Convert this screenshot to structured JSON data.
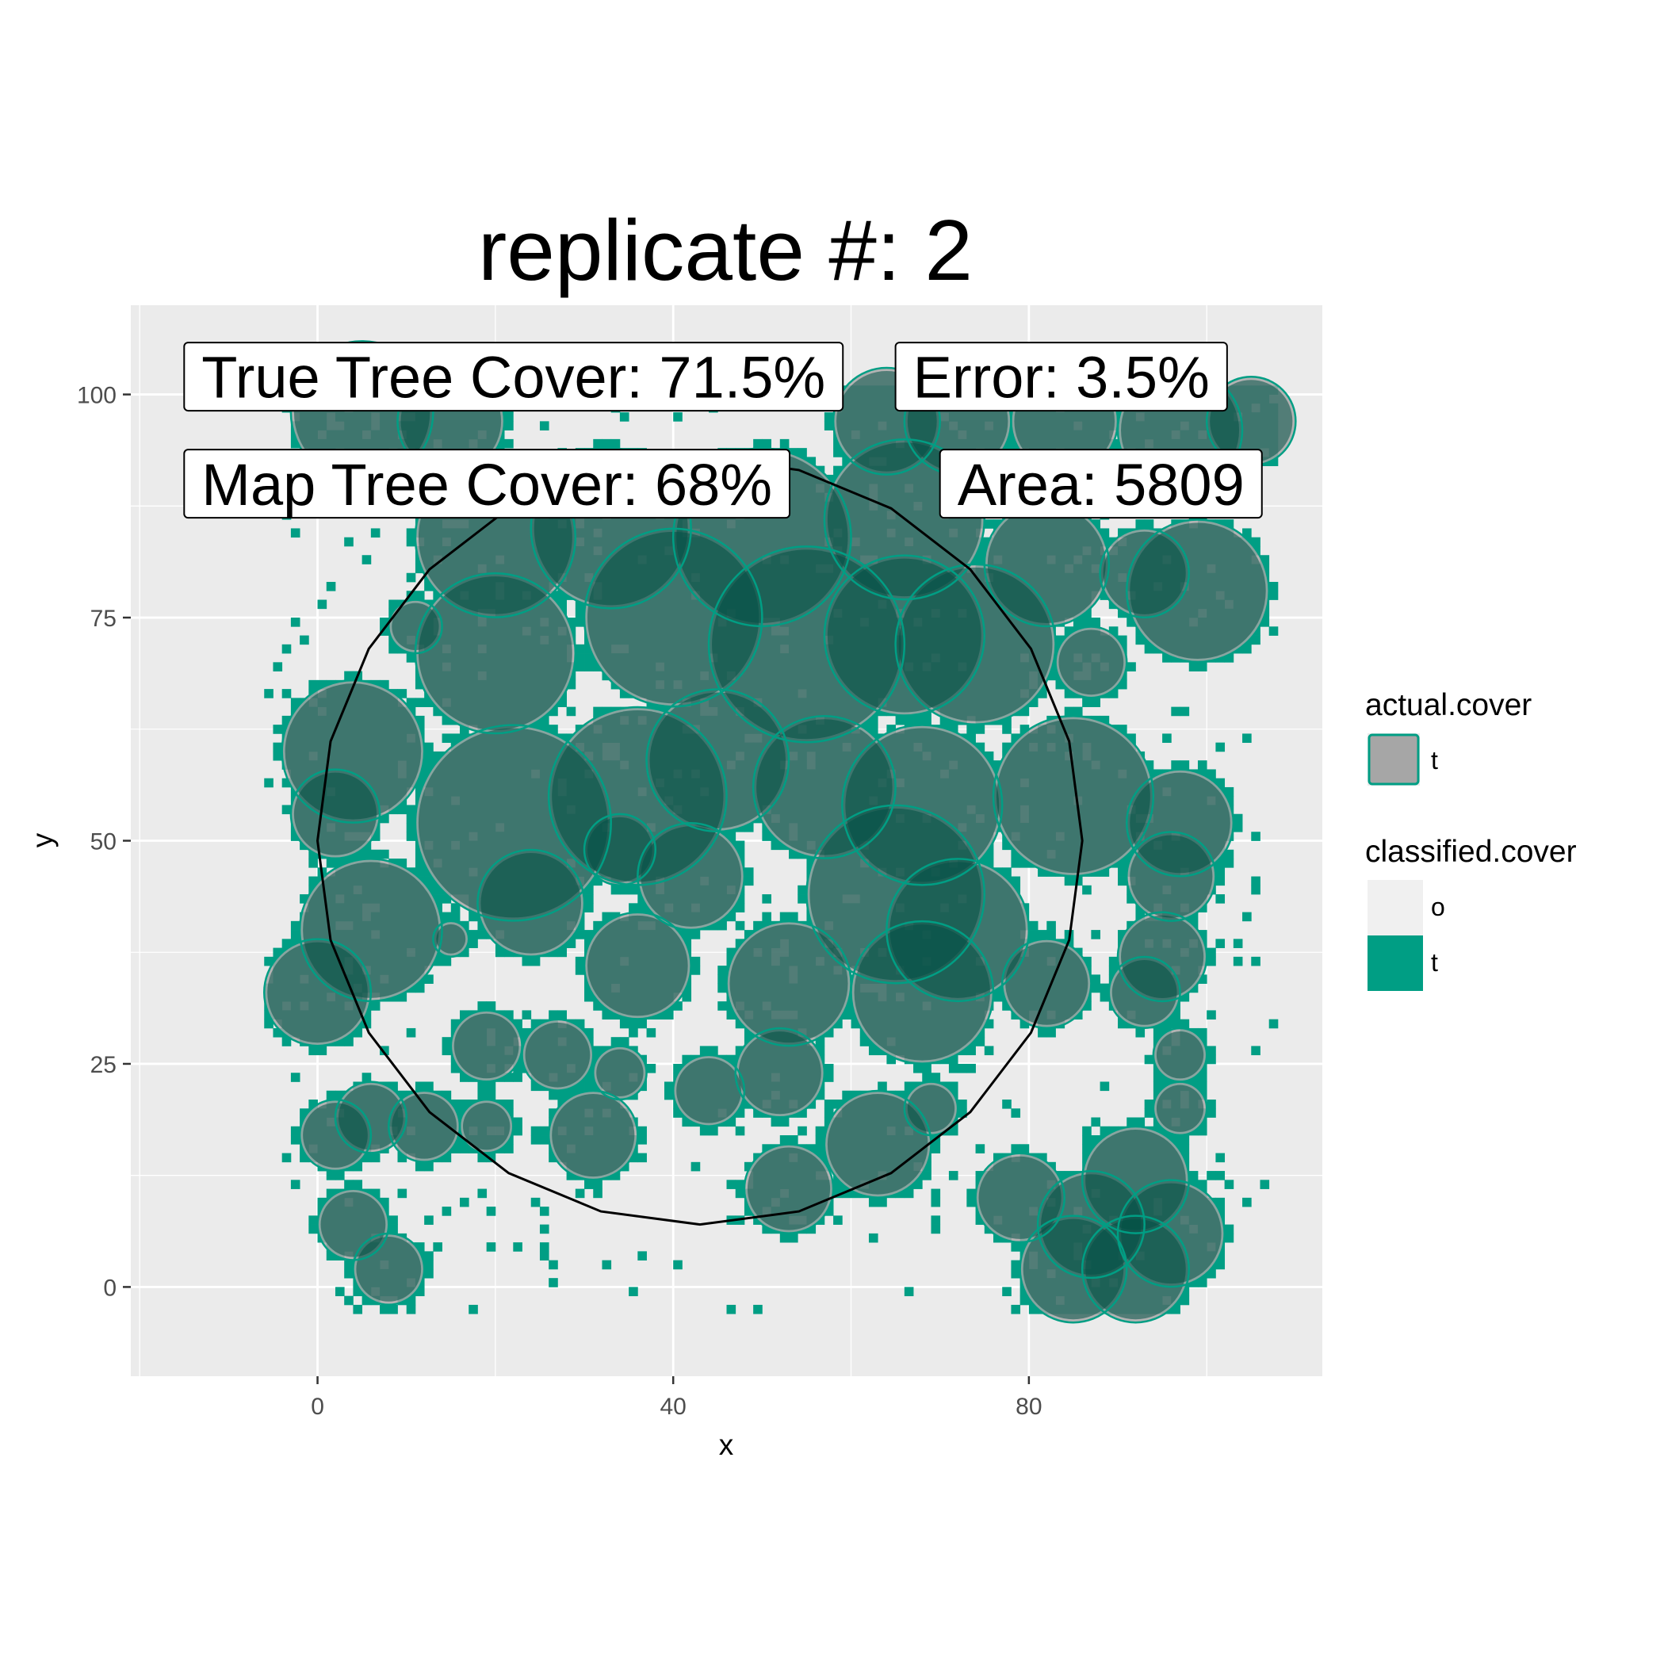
{
  "chart_data": {
    "type": "map",
    "title": "replicate #: 2",
    "xlabel": "x",
    "ylabel": "y",
    "xlim": [
      -21,
      113
    ],
    "ylim": [
      -10,
      110
    ],
    "x_ticks": [
      {
        "value": 0,
        "label": "0"
      },
      {
        "value": 40,
        "label": "40"
      },
      {
        "value": 80,
        "label": "80"
      }
    ],
    "y_ticks": [
      {
        "value": 0,
        "label": "0"
      },
      {
        "value": 25,
        "label": "25"
      },
      {
        "value": 50,
        "label": "50"
      },
      {
        "value": 75,
        "label": "75"
      },
      {
        "value": 100,
        "label": "100"
      }
    ],
    "grid": true,
    "colors": {
      "panel_background": "#ebebeb",
      "gridline": "#ffffff",
      "classified_tree": "#009e84",
      "classified_other": "#f0f0f0",
      "actual_cover_fill": "#a6a6a6",
      "actual_cover_outline": "#009e84",
      "overlap_fill": "#01705f",
      "plot_boundary": "#000000"
    },
    "annotations": [
      {
        "id": "true-cover",
        "text": "True Tree Cover: 71.5%",
        "x": -15,
        "y": 102
      },
      {
        "id": "error",
        "text": "Error: 3.5%",
        "x": 65,
        "y": 102
      },
      {
        "id": "map-cover",
        "text": "Map Tree Cover: 68%",
        "x": -15,
        "y": 90
      },
      {
        "id": "area",
        "text": "Area: 5809",
        "x": 70,
        "y": 90
      }
    ],
    "legend": {
      "position": "right",
      "groups": [
        {
          "title": "actual.cover",
          "items": [
            {
              "label": "t",
              "fill": "#a6a6a6",
              "outline": "#009e84"
            }
          ]
        },
        {
          "title": "classified.cover",
          "items": [
            {
              "label": "o",
              "fill": "#f0f0f0"
            },
            {
              "label": "t",
              "fill": "#009e84"
            }
          ]
        }
      ]
    },
    "tree_crowns": [
      {
        "x": 5,
        "y": 98,
        "r": 8
      },
      {
        "x": 15,
        "y": 97,
        "r": 6
      },
      {
        "x": 64,
        "y": 97,
        "r": 6
      },
      {
        "x": 72,
        "y": 97,
        "r": 6
      },
      {
        "x": 84,
        "y": 97,
        "r": 6
      },
      {
        "x": 97,
        "y": 96,
        "r": 7
      },
      {
        "x": 105,
        "y": 97,
        "r": 5
      },
      {
        "x": 20,
        "y": 84,
        "r": 9
      },
      {
        "x": 33,
        "y": 85,
        "r": 9
      },
      {
        "x": 50,
        "y": 84,
        "r": 10
      },
      {
        "x": 66,
        "y": 86,
        "r": 9
      },
      {
        "x": 82,
        "y": 81,
        "r": 7
      },
      {
        "x": 93,
        "y": 80,
        "r": 5
      },
      {
        "x": 99,
        "y": 78,
        "r": 8
      },
      {
        "x": 11,
        "y": 74,
        "r": 3
      },
      {
        "x": 20,
        "y": 71,
        "r": 9
      },
      {
        "x": 40,
        "y": 75,
        "r": 10
      },
      {
        "x": 55,
        "y": 72,
        "r": 11
      },
      {
        "x": 66,
        "y": 73,
        "r": 9
      },
      {
        "x": 74,
        "y": 72,
        "r": 9
      },
      {
        "x": 87,
        "y": 70,
        "r": 4
      },
      {
        "x": 4,
        "y": 60,
        "r": 8
      },
      {
        "x": 2,
        "y": 53,
        "r": 5
      },
      {
        "x": 22,
        "y": 52,
        "r": 11
      },
      {
        "x": 36,
        "y": 55,
        "r": 10
      },
      {
        "x": 45,
        "y": 59,
        "r": 8
      },
      {
        "x": 57,
        "y": 56,
        "r": 8
      },
      {
        "x": 68,
        "y": 54,
        "r": 9
      },
      {
        "x": 85,
        "y": 55,
        "r": 9
      },
      {
        "x": 97,
        "y": 52,
        "r": 6
      },
      {
        "x": 34,
        "y": 49,
        "r": 4
      },
      {
        "x": 42,
        "y": 46,
        "r": 6
      },
      {
        "x": 24,
        "y": 43,
        "r": 6
      },
      {
        "x": 65,
        "y": 44,
        "r": 10
      },
      {
        "x": 72,
        "y": 40,
        "r": 8
      },
      {
        "x": 96,
        "y": 46,
        "r": 5
      },
      {
        "x": 6,
        "y": 40,
        "r": 8
      },
      {
        "x": 0,
        "y": 33,
        "r": 6
      },
      {
        "x": 15,
        "y": 39,
        "r": 2
      },
      {
        "x": 36,
        "y": 36,
        "r": 6
      },
      {
        "x": 53,
        "y": 34,
        "r": 7
      },
      {
        "x": 68,
        "y": 33,
        "r": 8
      },
      {
        "x": 82,
        "y": 34,
        "r": 5
      },
      {
        "x": 95,
        "y": 37,
        "r": 5
      },
      {
        "x": 93,
        "y": 33,
        "r": 4
      },
      {
        "x": 19,
        "y": 27,
        "r": 4
      },
      {
        "x": 27,
        "y": 26,
        "r": 4
      },
      {
        "x": 34,
        "y": 24,
        "r": 3
      },
      {
        "x": 44,
        "y": 22,
        "r": 4
      },
      {
        "x": 52,
        "y": 24,
        "r": 5
      },
      {
        "x": 97,
        "y": 26,
        "r": 3
      },
      {
        "x": 2,
        "y": 17,
        "r": 4
      },
      {
        "x": 6,
        "y": 19,
        "r": 4
      },
      {
        "x": 12,
        "y": 18,
        "r": 4
      },
      {
        "x": 19,
        "y": 18,
        "r": 3
      },
      {
        "x": 31,
        "y": 17,
        "r": 5
      },
      {
        "x": 63,
        "y": 16,
        "r": 6
      },
      {
        "x": 69,
        "y": 20,
        "r": 3
      },
      {
        "x": 97,
        "y": 20,
        "r": 3
      },
      {
        "x": 53,
        "y": 11,
        "r": 5
      },
      {
        "x": 4,
        "y": 7,
        "r": 4
      },
      {
        "x": 8,
        "y": 2,
        "r": 4
      },
      {
        "x": 79,
        "y": 10,
        "r": 5
      },
      {
        "x": 87,
        "y": 7,
        "r": 6
      },
      {
        "x": 92,
        "y": 12,
        "r": 6
      },
      {
        "x": 85,
        "y": 2,
        "r": 6
      },
      {
        "x": 96,
        "y": 6,
        "r": 6
      },
      {
        "x": 92,
        "y": 2,
        "r": 6
      }
    ],
    "plot_boundary": {
      "center": [
        43,
        50
      ],
      "rx": 43,
      "ry": 43,
      "vertices": 24
    }
  }
}
